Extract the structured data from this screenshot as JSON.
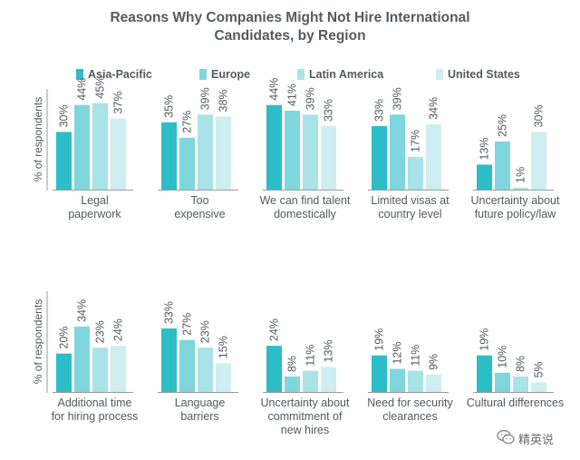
{
  "title_lines": [
    "Reasons Why Companies Might Not Hire International",
    "Candidates, by Region"
  ],
  "watermark": {
    "text": "精英说",
    "icon": "wechat-icon"
  },
  "chart_data": [
    {
      "type": "bar",
      "ylabel": "% of respondents",
      "series": [
        {
          "name": "Asia-Pacific",
          "color": "#2dbdc6"
        },
        {
          "name": "Europe",
          "color": "#7fd6dd"
        },
        {
          "name": "Latin America",
          "color": "#a8e3e8"
        },
        {
          "name": "United States",
          "color": "#cfeef1"
        }
      ],
      "groups": [
        {
          "label": "Legal paperwork",
          "lines": [
            "Legal",
            "paperwork"
          ],
          "values": [
            30,
            44,
            45,
            37
          ],
          "labels": [
            "30%",
            "44%",
            "45%",
            "37%"
          ]
        },
        {
          "label": "Too expensive",
          "lines": [
            "Too",
            "expensive"
          ],
          "values": [
            35,
            27,
            39,
            38
          ],
          "labels": [
            "35%",
            "27%",
            "39%",
            "38%"
          ]
        },
        {
          "label": "We can find talent domestically",
          "lines": [
            "We can find talent",
            "domestically"
          ],
          "values": [
            44,
            41,
            39,
            33
          ],
          "labels": [
            "44%",
            "41%",
            "39%",
            "33%"
          ]
        },
        {
          "label": "Limited visas at country level",
          "lines": [
            "Limited visas at",
            "country level"
          ],
          "values": [
            33,
            39,
            17,
            34
          ],
          "labels": [
            "33%",
            "39%",
            "17%",
            "34%"
          ]
        },
        {
          "label": "Uncertainty about future policy/law",
          "lines": [
            "Uncertainty about",
            "future policy/law"
          ],
          "values": [
            13,
            25,
            1,
            30
          ],
          "labels": [
            "13%",
            "25%",
            "1%",
            "30%"
          ]
        }
      ]
    },
    {
      "type": "bar",
      "ylabel": "% of respondents",
      "series": [
        {
          "name": "Asia-Pacific",
          "color": "#2dbdc6"
        },
        {
          "name": "Europe",
          "color": "#7fd6dd"
        },
        {
          "name": "Latin America",
          "color": "#a8e3e8"
        },
        {
          "name": "United States",
          "color": "#cfeef1"
        }
      ],
      "groups": [
        {
          "label": "Additional time for hiring process",
          "lines": [
            "Additional time",
            "for hiring process"
          ],
          "values": [
            20,
            34,
            23,
            24
          ],
          "labels": [
            "20%",
            "34%",
            "23%",
            "24%"
          ]
        },
        {
          "label": "Language barriers",
          "lines": [
            "Language",
            "barriers"
          ],
          "values": [
            33,
            27,
            23,
            15
          ],
          "labels": [
            "33%",
            "27%",
            "23%",
            "15%"
          ]
        },
        {
          "label": "Uncertainty about commitment of new hires",
          "lines": [
            "Uncertainty about",
            "commitment of",
            "new hires"
          ],
          "values": [
            24,
            8,
            11,
            13
          ],
          "labels": [
            "24%",
            "8%",
            "11%",
            "13%"
          ]
        },
        {
          "label": "Need for security clearances",
          "lines": [
            "Need for security",
            "clearances"
          ],
          "values": [
            19,
            12,
            11,
            9
          ],
          "labels": [
            "19%",
            "12%",
            "11%",
            "9%"
          ]
        },
        {
          "label": "Cultural differences",
          "lines": [
            "Cultural differences"
          ],
          "values": [
            19,
            10,
            8,
            5
          ],
          "labels": [
            "19%",
            "10%",
            "8%",
            "5%"
          ]
        }
      ]
    }
  ]
}
